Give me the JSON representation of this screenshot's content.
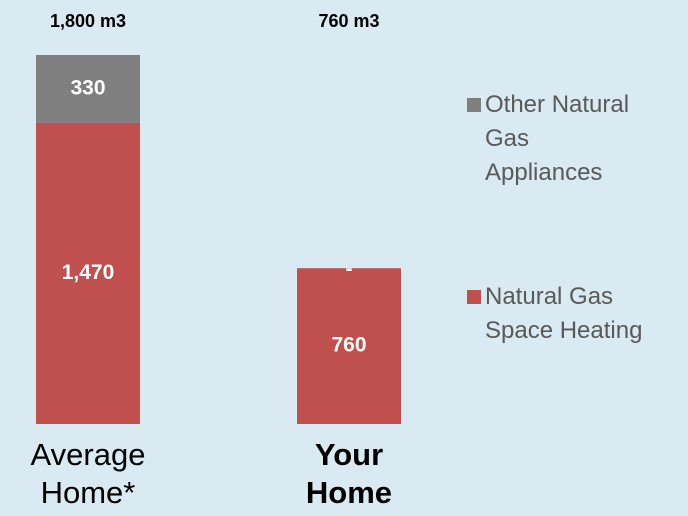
{
  "chart_data": {
    "type": "stacked_bar",
    "categories": [
      "Average Home*",
      "Your Home"
    ],
    "bold_category_index": 1,
    "total_labels": [
      "1,800 m3",
      "760 m3"
    ],
    "series": [
      {
        "name": "Natural Gas Space Heating",
        "color": "#c0504d",
        "values": [
          1470,
          760
        ],
        "value_labels": [
          "1,470",
          "760"
        ]
      },
      {
        "name": "Other Natural Gas Appliances",
        "color": "#7f7f7f",
        "values": [
          330,
          0
        ],
        "value_labels": [
          "330",
          "-"
        ]
      }
    ],
    "ylim": [
      0,
      1800
    ],
    "legend": "right"
  }
}
